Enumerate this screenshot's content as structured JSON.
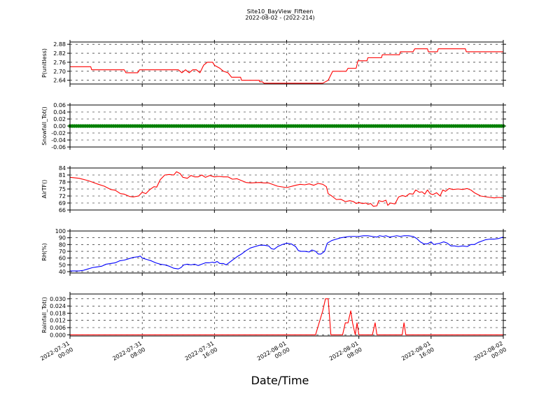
{
  "title": "Site10_BayView_Fifteen",
  "subtitle": "2022-08-02 - (2022-214)",
  "xlabel": "Date/Time",
  "x_ticks": [
    {
      "l1": "2022-07-31",
      "l2": "00:00",
      "h": 0
    },
    {
      "l1": "2022-07-31",
      "l2": "08:00",
      "h": 8
    },
    {
      "l1": "2022-07-31",
      "l2": "16:00",
      "h": 16
    },
    {
      "l1": "2022-08-01",
      "l2": "00:00",
      "h": 24
    },
    {
      "l1": "2022-08-01",
      "l2": "08:00",
      "h": 32
    },
    {
      "l1": "2022-08-01",
      "l2": "16:00",
      "h": 40
    },
    {
      "l1": "2022-08-02",
      "l2": "00:00",
      "h": 48
    }
  ],
  "chart_data": [
    {
      "type": "line",
      "ylabel": "P(unitless)",
      "color": "#ff0000",
      "ylim": [
        2.615,
        2.895
      ],
      "yticks": [
        "2.64",
        "2.70",
        "2.76",
        "2.82",
        "2.88"
      ],
      "ytick_values": [
        2.64,
        2.7,
        2.76,
        2.82,
        2.88
      ],
      "points": [
        [
          0,
          2.73
        ],
        [
          2.3,
          2.73
        ],
        [
          2.4,
          2.71
        ],
        [
          4,
          2.71
        ],
        [
          6,
          2.71
        ],
        [
          6.2,
          2.69
        ],
        [
          7.5,
          2.69
        ],
        [
          7.7,
          2.71
        ],
        [
          9,
          2.71
        ],
        [
          11,
          2.71
        ],
        [
          12,
          2.71
        ],
        [
          12.4,
          2.69
        ],
        [
          12.8,
          2.71
        ],
        [
          13.2,
          2.69
        ],
        [
          13.6,
          2.71
        ],
        [
          14,
          2.71
        ],
        [
          14.4,
          2.69
        ],
        [
          14.8,
          2.74
        ],
        [
          15.2,
          2.76
        ],
        [
          15.8,
          2.76
        ],
        [
          16,
          2.74
        ],
        [
          16.6,
          2.72
        ],
        [
          17,
          2.7
        ],
        [
          17.5,
          2.69
        ],
        [
          17.9,
          2.66
        ],
        [
          18.9,
          2.66
        ],
        [
          19,
          2.64
        ],
        [
          21,
          2.64
        ],
        [
          21,
          2.63
        ],
        [
          21.3,
          2.63
        ],
        [
          21.5,
          2.62
        ],
        [
          28,
          2.62
        ],
        [
          28.6,
          2.64
        ],
        [
          29.1,
          2.7
        ],
        [
          30,
          2.7
        ],
        [
          30.6,
          2.7
        ],
        [
          30.8,
          2.72
        ],
        [
          31.7,
          2.72
        ],
        [
          31.9,
          2.77
        ],
        [
          32.9,
          2.77
        ],
        [
          33,
          2.79
        ],
        [
          34.5,
          2.79
        ],
        [
          34.6,
          2.81
        ],
        [
          36.5,
          2.81
        ],
        [
          36.6,
          2.83
        ],
        [
          38,
          2.83
        ],
        [
          38.2,
          2.85
        ],
        [
          39.6,
          2.85
        ],
        [
          39.7,
          2.83
        ],
        [
          40.7,
          2.83
        ],
        [
          40.8,
          2.85
        ],
        [
          43,
          2.85
        ],
        [
          43.8,
          2.85
        ],
        [
          43.9,
          2.83
        ],
        [
          48,
          2.83
        ]
      ]
    },
    {
      "type": "scatter",
      "ylabel": "Snowfall_Tot()",
      "color": "#008000",
      "ylim": [
        -0.06,
        0.06
      ],
      "yticks": [
        "-0.06",
        "-0.04",
        "-0.02",
        "0.00",
        "0.02",
        "0.04",
        "0.06"
      ],
      "ytick_values": [
        -0.06,
        -0.04,
        -0.02,
        0,
        0.02,
        0.04,
        0.06
      ],
      "points": [
        [
          0,
          0
        ],
        [
          48,
          0
        ]
      ],
      "note_constant": 0
    },
    {
      "type": "line",
      "ylabel": "AirTF()",
      "color": "#ff0000",
      "ylim": [
        66,
        84
      ],
      "yticks": [
        "66",
        "69",
        "72",
        "75",
        "78",
        "81",
        "84"
      ],
      "ytick_values": [
        66,
        69,
        72,
        75,
        78,
        81,
        84
      ],
      "points": [
        [
          0,
          80
        ],
        [
          1,
          79.6
        ],
        [
          2,
          78.6
        ],
        [
          3,
          77.2
        ],
        [
          3.8,
          76.2
        ],
        [
          4.5,
          74.8
        ],
        [
          5,
          74.5
        ],
        [
          5.6,
          73
        ],
        [
          6,
          72.8
        ],
        [
          6.6,
          71.8
        ],
        [
          7,
          71.6
        ],
        [
          7.6,
          72
        ],
        [
          8,
          73.6
        ],
        [
          8.4,
          73
        ],
        [
          8.8,
          74.6
        ],
        [
          9.3,
          76
        ],
        [
          9.6,
          75.8
        ],
        [
          10,
          79
        ],
        [
          10.5,
          81
        ],
        [
          11,
          81.2
        ],
        [
          11.5,
          81
        ],
        [
          11.8,
          82.4
        ],
        [
          12.2,
          81.6
        ],
        [
          12.5,
          80
        ],
        [
          13,
          79.6
        ],
        [
          13.4,
          80.8
        ],
        [
          13.8,
          80.2
        ],
        [
          14.2,
          80.2
        ],
        [
          14.6,
          81
        ],
        [
          15,
          80
        ],
        [
          15.5,
          80.8
        ],
        [
          16,
          80.2
        ],
        [
          16.5,
          80.4
        ],
        [
          17,
          80.2
        ],
        [
          17.5,
          80.2
        ],
        [
          18,
          79.2
        ],
        [
          18.5,
          79.4
        ],
        [
          19,
          78.6
        ],
        [
          19.5,
          77.8
        ],
        [
          20,
          77.6
        ],
        [
          21,
          77.8
        ],
        [
          21.5,
          77.6
        ],
        [
          22,
          77.6
        ],
        [
          23,
          76.2
        ],
        [
          24,
          75.6
        ],
        [
          25,
          76.6
        ],
        [
          25.5,
          77
        ],
        [
          26,
          76.8
        ],
        [
          26.5,
          77.2
        ],
        [
          27,
          76.6
        ],
        [
          27.5,
          77.4
        ],
        [
          28,
          77
        ],
        [
          28.4,
          76
        ],
        [
          28.6,
          73
        ],
        [
          29,
          72
        ],
        [
          29.5,
          70.5
        ],
        [
          30,
          70.6
        ],
        [
          30.5,
          69.6
        ],
        [
          31,
          70
        ],
        [
          31.4,
          69.6
        ],
        [
          31.7,
          68.8
        ],
        [
          32,
          69.2
        ],
        [
          32.4,
          68.8
        ],
        [
          32.8,
          69
        ],
        [
          33,
          68.4
        ],
        [
          33.3,
          68.8
        ],
        [
          33.6,
          67.6
        ],
        [
          34,
          67.8
        ],
        [
          34.2,
          70
        ],
        [
          34.6,
          69.6
        ],
        [
          35,
          70.2
        ],
        [
          35.2,
          68
        ],
        [
          35.5,
          69
        ],
        [
          36,
          68.6
        ],
        [
          36.4,
          71.6
        ],
        [
          36.8,
          72.2
        ],
        [
          37.2,
          71.8
        ],
        [
          37.6,
          73
        ],
        [
          38,
          72.8
        ],
        [
          38.3,
          74.6
        ],
        [
          38.7,
          73.6
        ],
        [
          39,
          73.8
        ],
        [
          39.3,
          72.8
        ],
        [
          39.6,
          74.6
        ],
        [
          39.9,
          73
        ],
        [
          40.2,
          72.6
        ],
        [
          40.6,
          73.4
        ],
        [
          41,
          72
        ],
        [
          41.3,
          74.6
        ],
        [
          41.6,
          74
        ],
        [
          42,
          75.2
        ],
        [
          42.4,
          74.8
        ],
        [
          43,
          75
        ],
        [
          43.5,
          74.8
        ],
        [
          44,
          75.2
        ],
        [
          44.4,
          74.6
        ],
        [
          44.8,
          73.4
        ],
        [
          45.5,
          72
        ],
        [
          46.5,
          71.4
        ],
        [
          47,
          71.2
        ],
        [
          47.5,
          71.4
        ],
        [
          48,
          71.2
        ]
      ]
    },
    {
      "type": "line",
      "ylabel": "RH(%)",
      "color": "#0000ff",
      "ylim": [
        38,
        100
      ],
      "yticks": [
        "40",
        "50",
        "60",
        "70",
        "80",
        "90",
        "100"
      ],
      "ytick_values": [
        40,
        50,
        60,
        70,
        80,
        90,
        100
      ],
      "points": [
        [
          0,
          41
        ],
        [
          1,
          41
        ],
        [
          1.5,
          42
        ],
        [
          2,
          44
        ],
        [
          2.5,
          46
        ],
        [
          3,
          47
        ],
        [
          3.5,
          48
        ],
        [
          4,
          51
        ],
        [
          4.5,
          52
        ],
        [
          5,
          53
        ],
        [
          5.5,
          56
        ],
        [
          6,
          57
        ],
        [
          6.5,
          59
        ],
        [
          7,
          61
        ],
        [
          7.5,
          62
        ],
        [
          7.8,
          63
        ],
        [
          8,
          60
        ],
        [
          8.5,
          58
        ],
        [
          9,
          56
        ],
        [
          9.5,
          53
        ],
        [
          10,
          51
        ],
        [
          10.5,
          50
        ],
        [
          11,
          48
        ],
        [
          11.5,
          45
        ],
        [
          12,
          44
        ],
        [
          12.3,
          46
        ],
        [
          12.6,
          50
        ],
        [
          13,
          51
        ],
        [
          13.4,
          50
        ],
        [
          13.8,
          51
        ],
        [
          14.2,
          49
        ],
        [
          14.6,
          51
        ],
        [
          15,
          53
        ],
        [
          15.4,
          53
        ],
        [
          15.8,
          54
        ],
        [
          16,
          53
        ],
        [
          16.3,
          55
        ],
        [
          16.6,
          52
        ],
        [
          17,
          52
        ],
        [
          17.3,
          50
        ],
        [
          17.6,
          53
        ],
        [
          18,
          57
        ],
        [
          18.5,
          62
        ],
        [
          19,
          66
        ],
        [
          19.5,
          71
        ],
        [
          20,
          75
        ],
        [
          20.5,
          77
        ],
        [
          21,
          79
        ],
        [
          21.5,
          79
        ],
        [
          22,
          78
        ],
        [
          22.3,
          74
        ],
        [
          22.6,
          73
        ],
        [
          23,
          77
        ],
        [
          23.5,
          80
        ],
        [
          24,
          82
        ],
        [
          24.5,
          81
        ],
        [
          25,
          77
        ],
        [
          25.3,
          71
        ],
        [
          25.6,
          70
        ],
        [
          26,
          70
        ],
        [
          26.5,
          69
        ],
        [
          26.8,
          72
        ],
        [
          27.2,
          70
        ],
        [
          27.5,
          66
        ],
        [
          27.8,
          66
        ],
        [
          28.2,
          70
        ],
        [
          28.5,
          82
        ],
        [
          29,
          86
        ],
        [
          29.5,
          88
        ],
        [
          30,
          90
        ],
        [
          30.5,
          91
        ],
        [
          31,
          92
        ],
        [
          31.5,
          92
        ],
        [
          32,
          92
        ],
        [
          32.5,
          93
        ],
        [
          33,
          93
        ],
        [
          33.5,
          92
        ],
        [
          34,
          91
        ],
        [
          34.3,
          93
        ],
        [
          34.7,
          92
        ],
        [
          35,
          93
        ],
        [
          35.4,
          91
        ],
        [
          35.8,
          92
        ],
        [
          36.2,
          93
        ],
        [
          36.6,
          92
        ],
        [
          37,
          93
        ],
        [
          37.5,
          93
        ],
        [
          38,
          92
        ],
        [
          38.4,
          89
        ],
        [
          38.8,
          84
        ],
        [
          39.2,
          81
        ],
        [
          39.6,
          81
        ],
        [
          40,
          84
        ],
        [
          40.3,
          80
        ],
        [
          40.6,
          81
        ],
        [
          41,
          82
        ],
        [
          41.4,
          84
        ],
        [
          41.8,
          82
        ],
        [
          42.2,
          78
        ],
        [
          42.6,
          78
        ],
        [
          43,
          77
        ],
        [
          43.5,
          78
        ],
        [
          44,
          77
        ],
        [
          44.4,
          80
        ],
        [
          44.8,
          80
        ],
        [
          45.2,
          83
        ],
        [
          45.6,
          85
        ],
        [
          46,
          87
        ],
        [
          46.5,
          88
        ],
        [
          47,
          88
        ],
        [
          47.5,
          89
        ],
        [
          48,
          91
        ]
      ]
    },
    {
      "type": "line",
      "ylabel": "Rainfall_Tot()",
      "color": "#ff0000",
      "ylim": [
        -0.001,
        0.034
      ],
      "yticks": [
        "0.000",
        "0.006",
        "0.012",
        "0.018",
        "0.024",
        "0.030"
      ],
      "ytick_values": [
        0,
        0.006,
        0.012,
        0.018,
        0.024,
        0.03
      ],
      "points": [
        [
          0,
          0
        ],
        [
          27.2,
          0
        ],
        [
          28,
          0.02
        ],
        [
          28.3,
          0.03
        ],
        [
          28.6,
          0.03
        ],
        [
          28.9,
          0
        ],
        [
          30.2,
          0
        ],
        [
          30.5,
          0.01
        ],
        [
          30.8,
          0.01
        ],
        [
          31.1,
          0.02
        ],
        [
          31.3,
          0.01
        ],
        [
          31.6,
          0
        ],
        [
          31.8,
          0.01
        ],
        [
          32,
          0
        ],
        [
          33.5,
          0
        ],
        [
          33.8,
          0.01
        ],
        [
          34.0,
          0
        ],
        [
          36.8,
          0
        ],
        [
          37.0,
          0.01
        ],
        [
          37.2,
          0
        ],
        [
          48,
          0
        ]
      ]
    }
  ]
}
